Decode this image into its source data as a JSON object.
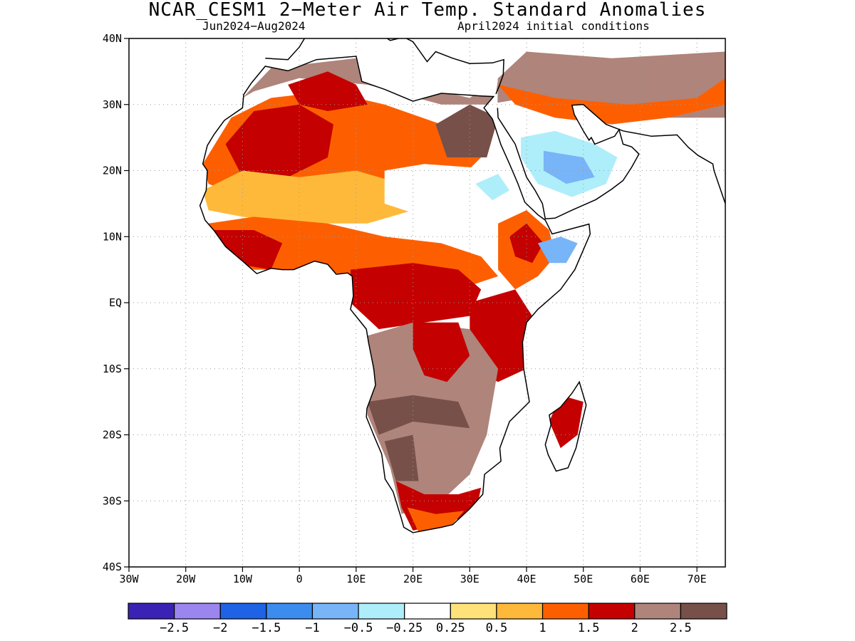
{
  "title": "NCAR_CESM1 2−Meter Air Temp. Standard Anomalies",
  "subtitle_left": "Jun2024−Aug2024",
  "subtitle_right": "April2024 initial conditions",
  "map": {
    "lon_range": [
      -30,
      75
    ],
    "lat_range": [
      -40,
      40
    ],
    "lat_ticks": [
      {
        "v": 40,
        "label": "40N"
      },
      {
        "v": 30,
        "label": "30N"
      },
      {
        "v": 20,
        "label": "20N"
      },
      {
        "v": 10,
        "label": "10N"
      },
      {
        "v": 0,
        "label": "EQ"
      },
      {
        "v": -10,
        "label": "10S"
      },
      {
        "v": -20,
        "label": "20S"
      },
      {
        "v": -30,
        "label": "30S"
      },
      {
        "v": -40,
        "label": "40S"
      }
    ],
    "lon_ticks": [
      {
        "v": -30,
        "label": "30W"
      },
      {
        "v": -20,
        "label": "20W"
      },
      {
        "v": -10,
        "label": "10W"
      },
      {
        "v": 0,
        "label": "0"
      },
      {
        "v": 10,
        "label": "10E"
      },
      {
        "v": 20,
        "label": "20E"
      },
      {
        "v": 30,
        "label": "30E"
      },
      {
        "v": 40,
        "label": "40E"
      },
      {
        "v": 50,
        "label": "50E"
      },
      {
        "v": 60,
        "label": "60E"
      },
      {
        "v": 70,
        "label": "70E"
      }
    ],
    "grid": "dotted"
  },
  "colorbar": {
    "colors": [
      "#3a22b4",
      "#9b86f0",
      "#1e62e6",
      "#3c8cf0",
      "#78b4f8",
      "#aeeefa",
      "#ffffff",
      "#ffe27a",
      "#ffb93a",
      "#fd5f00",
      "#c40000",
      "#af847a",
      "#77504a"
    ],
    "labels": [
      "−2.5",
      "−2",
      "−1.5",
      "−1",
      "−0.5",
      "−0.25",
      "0.25",
      "0.5",
      "1",
      "1.5",
      "2",
      "2.5"
    ]
  },
  "anomaly_regions": [
    {
      "name": "north-africa",
      "color": "#af847a",
      "points": [
        [
          -10,
          31
        ],
        [
          -5,
          35.5
        ],
        [
          10,
          37
        ],
        [
          20,
          33
        ],
        [
          30,
          31
        ],
        [
          35,
          34
        ],
        [
          40,
          38
        ],
        [
          55,
          37
        ],
        [
          75,
          38
        ],
        [
          75,
          28
        ],
        [
          60,
          28
        ],
        [
          50,
          30
        ],
        [
          40,
          31
        ],
        [
          33,
          30
        ],
        [
          25,
          30
        ],
        [
          12,
          33
        ],
        [
          0,
          34
        ],
        [
          -8,
          32
        ]
      ]
    },
    {
      "name": "north-africa",
      "color": "#fd5f00",
      "points": [
        [
          -17,
          21
        ],
        [
          -12,
          28
        ],
        [
          -5,
          31
        ],
        [
          5,
          32
        ],
        [
          15,
          30
        ],
        [
          25,
          27
        ],
        [
          32,
          22
        ],
        [
          25,
          16
        ],
        [
          18,
          14
        ],
        [
          10,
          16
        ],
        [
          0,
          15
        ],
        [
          -10,
          16
        ],
        [
          -16,
          18
        ]
      ]
    },
    {
      "name": "north-africa",
      "color": "#c40000",
      "points": [
        [
          -13,
          24
        ],
        [
          -8,
          29
        ],
        [
          0,
          30
        ],
        [
          6,
          27
        ],
        [
          5,
          22
        ],
        [
          -2,
          19
        ],
        [
          -10,
          19
        ]
      ]
    },
    {
      "name": "north-africa",
      "color": "#c40000",
      "points": [
        [
          -2,
          33
        ],
        [
          5,
          35
        ],
        [
          10,
          33
        ],
        [
          12,
          30
        ],
        [
          5,
          29
        ],
        [
          0,
          30
        ]
      ]
    },
    {
      "name": "north-africa",
      "color": "#77504a",
      "points": [
        [
          24,
          27
        ],
        [
          30,
          30
        ],
        [
          35,
          28
        ],
        [
          33,
          22
        ],
        [
          26,
          22
        ]
      ]
    },
    {
      "name": "north-africa",
      "color": "#ffb93a",
      "points": [
        [
          -17,
          17
        ],
        [
          -10,
          20
        ],
        [
          0,
          19
        ],
        [
          10,
          20
        ],
        [
          18,
          18
        ],
        [
          20,
          14
        ],
        [
          12,
          12
        ],
        [
          0,
          12
        ],
        [
          -10,
          13
        ],
        [
          -16,
          14
        ]
      ]
    },
    {
      "name": "sahel-white",
      "color": "#ffffff",
      "points": [
        [
          15,
          20
        ],
        [
          22,
          21
        ],
        [
          30,
          20.5
        ],
        [
          37,
          20
        ],
        [
          40,
          17
        ],
        [
          35,
          13
        ],
        [
          28,
          12
        ],
        [
          22,
          13
        ],
        [
          15,
          15
        ]
      ]
    },
    {
      "name": "sahel-blue",
      "color": "#aeeefa",
      "points": [
        [
          31,
          18
        ],
        [
          35,
          19.5
        ],
        [
          37,
          17
        ],
        [
          34,
          15.5
        ]
      ]
    },
    {
      "name": "arabia",
      "color": "#aeeefa",
      "points": [
        [
          39,
          25
        ],
        [
          45,
          26
        ],
        [
          52,
          24
        ],
        [
          56,
          22
        ],
        [
          54,
          18
        ],
        [
          48,
          16
        ],
        [
          42,
          18
        ],
        [
          39,
          22
        ]
      ]
    },
    {
      "name": "arabia",
      "color": "#78b4f8",
      "points": [
        [
          43,
          23
        ],
        [
          50,
          22
        ],
        [
          52,
          19
        ],
        [
          47,
          18
        ],
        [
          43,
          20
        ]
      ]
    },
    {
      "name": "middle-east",
      "color": "#fd5f00",
      "points": [
        [
          35,
          33
        ],
        [
          45,
          31
        ],
        [
          58,
          30
        ],
        [
          70,
          31
        ],
        [
          75,
          34
        ],
        [
          75,
          30
        ],
        [
          65,
          28
        ],
        [
          55,
          27
        ],
        [
          45,
          28
        ],
        [
          38,
          30
        ]
      ]
    },
    {
      "name": "west-africa",
      "color": "#fd5f00",
      "points": [
        [
          -16,
          12
        ],
        [
          -8,
          13
        ],
        [
          5,
          12
        ],
        [
          15,
          10
        ],
        [
          25,
          9
        ],
        [
          32,
          7
        ],
        [
          35,
          4
        ],
        [
          28,
          2
        ],
        [
          20,
          2
        ],
        [
          10,
          4
        ],
        [
          2,
          5
        ],
        [
          -8,
          5
        ],
        [
          -14,
          8
        ]
      ]
    },
    {
      "name": "west-africa",
      "color": "#c40000",
      "points": [
        [
          -15,
          11
        ],
        [
          -8,
          11
        ],
        [
          -3,
          9
        ],
        [
          -5,
          5
        ],
        [
          -12,
          6
        ]
      ]
    },
    {
      "name": "central-africa",
      "color": "#c40000",
      "points": [
        [
          9,
          5
        ],
        [
          20,
          6
        ],
        [
          28,
          5
        ],
        [
          32,
          2
        ],
        [
          30,
          -2
        ],
        [
          22,
          -3
        ],
        [
          14,
          -4
        ],
        [
          9,
          0
        ]
      ]
    },
    {
      "name": "horn-africa",
      "color": "#fd5f00",
      "points": [
        [
          35,
          12
        ],
        [
          40,
          14
        ],
        [
          44,
          11
        ],
        [
          45,
          7
        ],
        [
          42,
          4
        ],
        [
          38,
          2
        ],
        [
          35,
          5
        ]
      ]
    },
    {
      "name": "horn-africa",
      "color": "#c40000",
      "points": [
        [
          37,
          10
        ],
        [
          40,
          12
        ],
        [
          43,
          9
        ],
        [
          41,
          6
        ],
        [
          38,
          7
        ]
      ]
    },
    {
      "name": "horn-africa",
      "color": "#78b4f8",
      "points": [
        [
          42,
          9
        ],
        [
          46,
          10
        ],
        [
          49,
          9
        ],
        [
          47,
          6
        ],
        [
          44,
          6
        ]
      ]
    },
    {
      "name": "east-africa",
      "color": "#c40000",
      "points": [
        [
          30,
          0
        ],
        [
          38,
          2
        ],
        [
          41,
          -2
        ],
        [
          40,
          -10
        ],
        [
          35,
          -12
        ],
        [
          30,
          -10
        ]
      ]
    },
    {
      "name": "southern-africa",
      "color": "#af847a",
      "points": [
        [
          12,
          -5
        ],
        [
          20,
          -3
        ],
        [
          30,
          -4
        ],
        [
          35,
          -10
        ],
        [
          33,
          -20
        ],
        [
          30,
          -26
        ],
        [
          25,
          -30
        ],
        [
          18,
          -32
        ],
        [
          16,
          -25
        ],
        [
          12,
          -17
        ],
        [
          12,
          -10
        ]
      ]
    },
    {
      "name": "southern-africa",
      "color": "#c40000",
      "points": [
        [
          20,
          -3
        ],
        [
          28,
          -3
        ],
        [
          30,
          -8
        ],
        [
          26,
          -12
        ],
        [
          22,
          -11
        ],
        [
          20,
          -7
        ]
      ]
    },
    {
      "name": "southern-africa",
      "color": "#77504a",
      "points": [
        [
          12,
          -15
        ],
        [
          20,
          -14
        ],
        [
          28,
          -15
        ],
        [
          30,
          -19
        ],
        [
          20,
          -18
        ],
        [
          14,
          -20
        ]
      ]
    },
    {
      "name": "southern-africa",
      "color": "#77504a",
      "points": [
        [
          15,
          -21
        ],
        [
          20,
          -20
        ],
        [
          21,
          -27
        ],
        [
          17,
          -27
        ]
      ]
    },
    {
      "name": "south-coast",
      "color": "#c40000",
      "points": [
        [
          17,
          -27
        ],
        [
          22,
          -29
        ],
        [
          28,
          -29
        ],
        [
          32,
          -28
        ],
        [
          31,
          -32
        ],
        [
          27,
          -33
        ],
        [
          20,
          -34.5
        ],
        [
          18,
          -31
        ]
      ]
    },
    {
      "name": "south-coast",
      "color": "#fd5f00",
      "points": [
        [
          19,
          -31
        ],
        [
          24,
          -32
        ],
        [
          29,
          -31.5
        ],
        [
          27,
          -33.5
        ],
        [
          21,
          -34.8
        ]
      ]
    },
    {
      "name": "madagascar",
      "color": "#c40000",
      "points": [
        [
          46,
          -14
        ],
        [
          50,
          -15
        ],
        [
          49,
          -20
        ],
        [
          46,
          -22
        ],
        [
          44,
          -18
        ]
      ]
    }
  ],
  "coastline": {
    "africa": [
      [
        -6,
        35.8
      ],
      [
        -2,
        35.1
      ],
      [
        3,
        36.8
      ],
      [
        10,
        37.3
      ],
      [
        11,
        33.5
      ],
      [
        15,
        32.3
      ],
      [
        20,
        30.5
      ],
      [
        25,
        31.7
      ],
      [
        32,
        31.3
      ],
      [
        34.2,
        31.2
      ],
      [
        32.5,
        29.5
      ],
      [
        34,
        27.8
      ],
      [
        35.5,
        23.9
      ],
      [
        37,
        21
      ],
      [
        38.5,
        18
      ],
      [
        39.7,
        15.2
      ],
      [
        42,
        13.3
      ],
      [
        43.3,
        12.5
      ],
      [
        44.5,
        10.4
      ],
      [
        51,
        11.9
      ],
      [
        51.2,
        10.4
      ],
      [
        48.5,
        5
      ],
      [
        46,
        2
      ],
      [
        42,
        -1
      ],
      [
        40,
        -3
      ],
      [
        39.3,
        -6
      ],
      [
        39.5,
        -10
      ],
      [
        40.5,
        -15
      ],
      [
        37,
        -18
      ],
      [
        35.3,
        -22
      ],
      [
        35.5,
        -24
      ],
      [
        32.6,
        -26
      ],
      [
        32.3,
        -29
      ],
      [
        30,
        -31.2
      ],
      [
        27,
        -33.6
      ],
      [
        25,
        -34
      ],
      [
        20,
        -34.8
      ],
      [
        18.4,
        -34
      ],
      [
        17.9,
        -32.5
      ],
      [
        16.5,
        -28.6
      ],
      [
        15.1,
        -26.7
      ],
      [
        14.5,
        -22.9
      ],
      [
        13.3,
        -20.5
      ],
      [
        11.8,
        -17.3
      ],
      [
        11.9,
        -16
      ],
      [
        13.4,
        -12.5
      ],
      [
        13.1,
        -10
      ],
      [
        12.2,
        -6.1
      ],
      [
        11.8,
        -4
      ],
      [
        9,
        -1
      ],
      [
        9.5,
        1
      ],
      [
        9.3,
        4
      ],
      [
        8.5,
        4.5
      ],
      [
        6.5,
        4.3
      ],
      [
        5,
        5.8
      ],
      [
        2.7,
        6.3
      ],
      [
        -1,
        5
      ],
      [
        -3,
        5
      ],
      [
        -5,
        5.2
      ],
      [
        -7.5,
        4.4
      ],
      [
        -10,
        6.3
      ],
      [
        -13,
        8.5
      ],
      [
        -15,
        10.9
      ],
      [
        -16.6,
        12.5
      ],
      [
        -17.5,
        14.7
      ],
      [
        -16.4,
        17
      ],
      [
        -16.2,
        20
      ],
      [
        -17,
        21
      ],
      [
        -16.2,
        23.8
      ],
      [
        -15,
        25.5
      ],
      [
        -13.2,
        27.6
      ],
      [
        -10,
        29.5
      ],
      [
        -9.8,
        31.5
      ],
      [
        -8.5,
        33.2
      ],
      [
        -6,
        35.8
      ]
    ],
    "arabia": [
      [
        34.9,
        29.5
      ],
      [
        35,
        28
      ],
      [
        36.5,
        26
      ],
      [
        38,
        24
      ],
      [
        39,
        21.5
      ],
      [
        40,
        19
      ],
      [
        41.5,
        17
      ],
      [
        42.8,
        15
      ],
      [
        43.3,
        12.7
      ],
      [
        45,
        12.8
      ],
      [
        48,
        14
      ],
      [
        52.2,
        15.6
      ],
      [
        55,
        17.2
      ],
      [
        57,
        18.5
      ],
      [
        58.5,
        20.5
      ],
      [
        59.8,
        22.5
      ],
      [
        58.5,
        23.6
      ],
      [
        57,
        24
      ],
      [
        56.3,
        26.2
      ],
      [
        55.5,
        25.2
      ],
      [
        52,
        24
      ],
      [
        51.4,
        25
      ],
      [
        51,
        24.6
      ],
      [
        50,
        26
      ],
      [
        48.4,
        28.5
      ],
      [
        48,
        29.9
      ],
      [
        50,
        30
      ],
      [
        54,
        27
      ],
      [
        57,
        26
      ],
      [
        62,
        25.2
      ],
      [
        66.5,
        25.4
      ],
      [
        68.5,
        23.5
      ],
      [
        70.2,
        22.3
      ],
      [
        72.8,
        21
      ],
      [
        73,
        20
      ],
      [
        75,
        15
      ]
    ],
    "madagascar": [
      [
        49.3,
        -12
      ],
      [
        50.5,
        -15.5
      ],
      [
        49.8,
        -18
      ],
      [
        48.7,
        -22
      ],
      [
        47.3,
        -25
      ],
      [
        45.2,
        -25.5
      ],
      [
        43.8,
        -23
      ],
      [
        43.3,
        -21.5
      ],
      [
        44.3,
        -18.5
      ],
      [
        44,
        -17
      ],
      [
        46,
        -15.8
      ],
      [
        48,
        -13.7
      ],
      [
        49.3,
        -12
      ]
    ],
    "med-north": [
      [
        -6,
        37
      ],
      [
        -2,
        36.8
      ],
      [
        0,
        38.7
      ],
      [
        3,
        43
      ],
      [
        8,
        44
      ],
      [
        12,
        42
      ],
      [
        16,
        39.7
      ],
      [
        18.4,
        40.2
      ],
      [
        20,
        39.5
      ],
      [
        22.5,
        36.5
      ],
      [
        24,
        38
      ],
      [
        27,
        37
      ],
      [
        30,
        36.2
      ],
      [
        34,
        36.3
      ],
      [
        36,
        36.8
      ],
      [
        35.9,
        34.5
      ],
      [
        35.2,
        32.8
      ],
      [
        34.6,
        31.6
      ]
    ]
  }
}
